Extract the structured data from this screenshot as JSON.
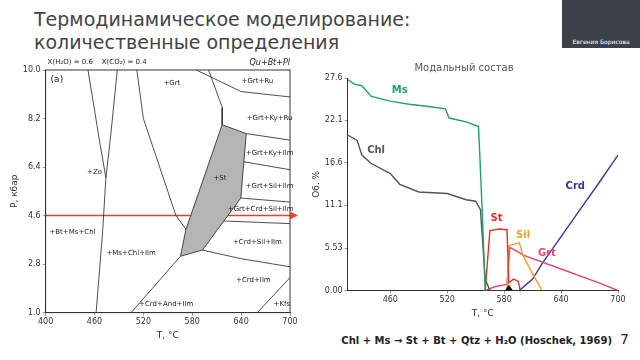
{
  "slide": {
    "title": "Термодинамическое моделирование: количественные определения",
    "speaker": "Евгения Борисова",
    "caption": "Chl + Ms → St + Bt + Qtz + H₂O (Hoschek, 1969)",
    "page": 7
  },
  "chart_data": [
    {
      "type": "phase_diagram",
      "header": [
        "X(H₂O) = 0.6",
        "X(CO₂) = 0.4"
      ],
      "panel": "(a)",
      "assemblage": "Qu+Bt+Pl",
      "x_label": "T, °C",
      "y_label": "P, кбар",
      "xlim": [
        400,
        700
      ],
      "xticks": [
        400,
        460,
        520,
        580,
        640,
        700
      ],
      "ylim": [
        1,
        10
      ],
      "yticks": [
        {
          "value": 1,
          "label": "1.0"
        },
        2.8,
        4.6,
        6.4,
        8.2,
        {
          "value": 10,
          "label": "10.0"
        }
      ],
      "grid": false,
      "boundaries": [
        [
          [
            452,
            10
          ],
          [
            466,
            7.4
          ],
          [
            474,
            6.0
          ],
          [
            470,
            4.0
          ],
          [
            462,
            1.0
          ]
        ],
        [
          [
            488,
            10
          ],
          [
            480,
            7.6
          ],
          [
            474,
            6.0
          ]
        ],
        [
          [
            512,
            10
          ],
          [
            520,
            8.2
          ],
          [
            540,
            6.4
          ],
          [
            560,
            4.6
          ],
          [
            572.3,
            4.09
          ]
        ],
        [
          [
            600,
            10
          ],
          [
            617,
            8.6
          ],
          [
            616.7,
            7.97
          ]
        ],
        [
          [
            585,
            10
          ],
          [
            640,
            9.2
          ],
          [
            700,
            9.0
          ]
        ],
        [
          [
            646.3,
            7.64
          ],
          [
            700,
            7.4
          ]
        ],
        [
          [
            643,
            6.6
          ],
          [
            700,
            6.3
          ]
        ],
        [
          [
            639.6,
            5.25
          ],
          [
            700,
            5.1
          ]
        ],
        [
          [
            619,
            4.4
          ],
          [
            700,
            4.3
          ]
        ],
        [
          [
            592.5,
            3.32
          ],
          [
            640,
            3.0
          ],
          [
            700,
            2.7
          ]
        ],
        [
          [
            505,
            1.0
          ],
          [
            565.5,
            3.09
          ]
        ],
        [
          [
            660,
            1.0
          ],
          [
            700,
            2.3
          ]
        ]
      ],
      "field": {
        "color": "#b5b5b5",
        "points": [
          [
            616.7,
            7.97
          ],
          [
            646.3,
            7.64
          ],
          [
            639.6,
            5.25
          ],
          [
            592.5,
            3.32
          ],
          [
            565.5,
            3.09
          ],
          [
            572.3,
            4.09
          ]
        ]
      },
      "section": {
        "y": 4.6,
        "color": "#e8412c"
      },
      "field_labels": [
        {
          "text": "+Grt",
          "x": 555,
          "y": 9.5
        },
        {
          "text": "+Grt+Ru",
          "x": 660,
          "y": 9.6
        },
        {
          "text": "+Grt+Ky+Ru",
          "x": 675,
          "y": 8.2
        },
        {
          "text": "+Grt+Ky+Ilm",
          "x": 675,
          "y": 6.9
        },
        {
          "text": "+Grt+Sil+Ilm",
          "x": 675,
          "y": 5.7
        },
        {
          "text": "+Grt+Crd+Sil+Ilm",
          "x": 664,
          "y": 4.85
        },
        {
          "text": "+Crd+Sil+Ilm",
          "x": 660,
          "y": 3.6
        },
        {
          "text": "+Crd+Ilm",
          "x": 655,
          "y": 2.2
        },
        {
          "text": "+Kfs",
          "x": 690,
          "y": 1.3
        },
        {
          "text": "+St",
          "x": 614,
          "y": 6.0
        },
        {
          "text": "+Zo",
          "x": 460,
          "y": 6.2
        },
        {
          "text": "+Bt+Ms+Chl",
          "x": 433,
          "y": 4.0
        },
        {
          "text": "+Ms+Chl+Ilm",
          "x": 505,
          "y": 3.2
        },
        {
          "text": "+Crd+And+Ilm",
          "x": 548,
          "y": 1.3
        }
      ]
    },
    {
      "type": "line",
      "title": "Модальный состав",
      "x_label": "T, °C",
      "y_label": "Об. %",
      "xlim": [
        415,
        700
      ],
      "xticks": [
        460,
        520,
        580,
        640,
        700
      ],
      "ylim": [
        0,
        27.6
      ],
      "yticks": [
        {
          "value": 0,
          "label": "0.00"
        },
        5.53,
        11.1,
        16.6,
        22.1,
        27.6
      ],
      "grid": false,
      "pointer": 585,
      "series": [
        {
          "name": "Ms",
          "color": "#21a06c",
          "label_at": [
            470,
            26.0
          ],
          "x": [
            415,
            422,
            430,
            440,
            460,
            480,
            500,
            518,
            522,
            540,
            553,
            557,
            560
          ],
          "values": [
            27.4,
            26.8,
            26.6,
            25.2,
            24.6,
            24.2,
            23.9,
            23.6,
            22.4,
            21.9,
            21.3,
            10.0,
            0
          ]
        },
        {
          "name": "Chl",
          "color": "#555555",
          "label_at": [
            445,
            18.2
          ],
          "x": [
            415,
            425,
            430,
            440,
            460,
            470,
            490,
            520,
            540,
            550,
            555,
            560,
            565
          ],
          "values": [
            20.2,
            19.5,
            17.6,
            16.5,
            15.2,
            13.8,
            12.8,
            12.6,
            11.8,
            11.6,
            10.5,
            1.5,
            0
          ]
        },
        {
          "name": "St",
          "color": "#e0302a",
          "label_at": [
            572,
            9.4
          ],
          "x": [
            560,
            565,
            575,
            583,
            585,
            590,
            595,
            597
          ],
          "values": [
            0,
            7.8,
            8.0,
            7.9,
            1.0,
            1.5,
            1.2,
            0
          ]
        },
        {
          "name": "Sil",
          "color": "#f0a030",
          "label_at": [
            600,
            7.2
          ],
          "x": [
            583,
            585,
            590,
            596,
            600,
            610,
            620
          ],
          "values": [
            0,
            5.8,
            6.0,
            6.2,
            4.5,
            2.2,
            0
          ]
        },
        {
          "name": "Grt",
          "color": "#e0457b",
          "label_at": [
            625,
            4.8
          ],
          "x": [
            560,
            570,
            583,
            586,
            595,
            600,
            640,
            680,
            700
          ],
          "values": [
            0,
            0.5,
            0.8,
            5.6,
            5.0,
            4.6,
            2.8,
            1.0,
            0
          ]
        },
        {
          "name": "Crd",
          "color": "#3a3a9a",
          "label_at": [
            655,
            13.5
          ],
          "x": [
            596,
            610,
            620,
            640,
            660,
            680,
            700
          ],
          "values": [
            0,
            1.5,
            3.5,
            7.0,
            10.5,
            14.0,
            17.6
          ]
        }
      ]
    }
  ]
}
